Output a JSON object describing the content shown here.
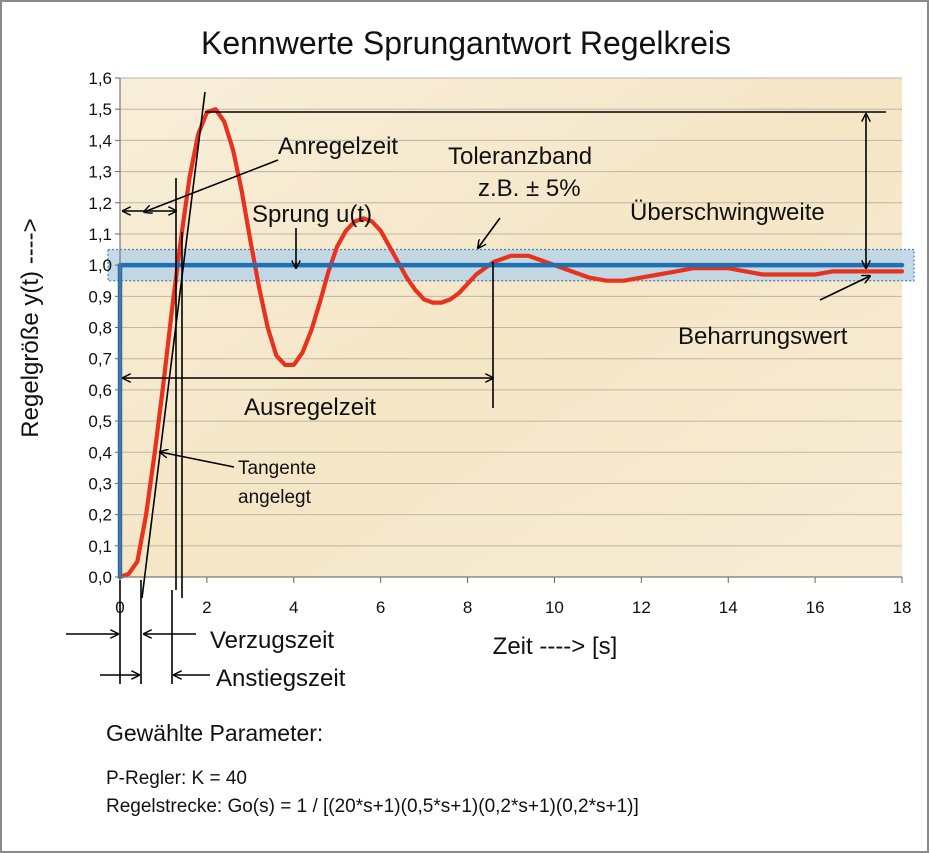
{
  "chart_data": {
    "type": "line",
    "title": "Kennwerte Sprungantwort  Regelkreis",
    "ylabel": "Regelgröße y(t)  ---->",
    "xlabel": "Zeit  ---->  [s]",
    "xlim": [
      0,
      18
    ],
    "ylim": [
      0,
      1.6
    ],
    "x_ticks": [
      "0",
      "2",
      "4",
      "6",
      "8",
      "10",
      "12",
      "14",
      "16",
      "18"
    ],
    "y_ticks": [
      "0,0",
      "0,1",
      "0,2",
      "0,3",
      "0,4",
      "0,5",
      "0,6",
      "0,7",
      "0,8",
      "0,9",
      "1,0",
      "1,1",
      "1,2",
      "1,3",
      "1,4",
      "1,5",
      "1,6"
    ],
    "series": [
      {
        "name": "Sprung u(t)",
        "color": "#1f6fb5",
        "x": [
          0,
          0,
          18
        ],
        "y": [
          0,
          1.0,
          1.0
        ]
      },
      {
        "name": "",
        "color": "#e8321e",
        "x": [
          0,
          0.2,
          0.4,
          0.6,
          0.8,
          1.0,
          1.2,
          1.4,
          1.6,
          1.8,
          2.0,
          2.2,
          2.4,
          2.6,
          2.8,
          3.0,
          3.2,
          3.4,
          3.6,
          3.8,
          4.0,
          4.2,
          4.4,
          4.6,
          4.8,
          5.0,
          5.2,
          5.4,
          5.6,
          5.8,
          6.0,
          6.2,
          6.4,
          6.6,
          6.8,
          7.0,
          7.2,
          7.4,
          7.6,
          7.8,
          8.0,
          8.2,
          8.4,
          8.6,
          8.8,
          9.0,
          9.2,
          9.4,
          9.6,
          9.8,
          10.0,
          10.4,
          10.8,
          11.2,
          11.6,
          12.0,
          12.4,
          12.8,
          13.2,
          13.6,
          14.0,
          14.4,
          14.8,
          15.2,
          15.6,
          16.0,
          16.4,
          16.8,
          17.2,
          17.6,
          18.0
        ],
        "y": [
          0,
          0.01,
          0.05,
          0.2,
          0.4,
          0.62,
          0.86,
          1.08,
          1.28,
          1.42,
          1.49,
          1.5,
          1.46,
          1.37,
          1.24,
          1.08,
          0.93,
          0.8,
          0.71,
          0.68,
          0.68,
          0.72,
          0.79,
          0.88,
          0.98,
          1.06,
          1.11,
          1.14,
          1.15,
          1.14,
          1.11,
          1.06,
          1.01,
          0.96,
          0.92,
          0.89,
          0.88,
          0.88,
          0.89,
          0.91,
          0.94,
          0.97,
          0.99,
          1.01,
          1.02,
          1.03,
          1.03,
          1.03,
          1.02,
          1.01,
          1.0,
          0.98,
          0.96,
          0.95,
          0.95,
          0.96,
          0.97,
          0.98,
          0.99,
          0.99,
          0.99,
          0.98,
          0.97,
          0.97,
          0.97,
          0.97,
          0.98,
          0.98,
          0.98,
          0.98,
          0.98
        ]
      }
    ],
    "toleranzband": [
      0.95,
      1.05
    ],
    "annotations": {
      "anregelzeit": "Anregelzeit",
      "toleranzband": "Toleranzband",
      "tol_example": "z.B.  ± 5%",
      "sprung": "Sprung u(t)",
      "ueberschwingweite": "Überschwingweite",
      "beharrungswert": "Beharrungswert",
      "ausregelzeit": "Ausregelzeit",
      "tangente_1": "Tangente",
      "tangente_2": "angelegt",
      "verzugszeit": "Verzugszeit",
      "anstiegszeit": "Anstiegszeit"
    }
  },
  "params": {
    "heading": "Gewählte Parameter:",
    "line1": "P-Regler: K = 40",
    "line2": "Regelstrecke: Go(s) = 1 / [(20*s+1)(0,5*s+1)(0,2*s+1)(0,2*s+1)]"
  }
}
